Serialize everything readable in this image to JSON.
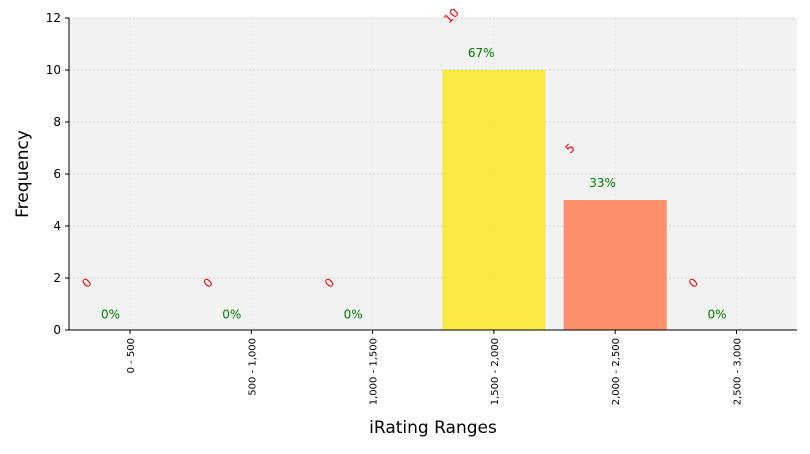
{
  "chart_data": {
    "type": "bar",
    "xlabel": "iRating Ranges",
    "ylabel": "Frequency",
    "categories": [
      "0 - 500",
      "500 - 1,000",
      "1,000 - 1,500",
      "1,500 - 2,000",
      "2,000 - 2,500",
      "2,500 - 3,000"
    ],
    "values": [
      0,
      0,
      0,
      10,
      5,
      0
    ],
    "count_labels": [
      "0",
      "0",
      "0",
      "10",
      "5",
      "0"
    ],
    "percent_labels": [
      "0%",
      "0%",
      "0%",
      "67%",
      "33%",
      "0%"
    ],
    "bar_colors": [
      "#440154",
      "#3b528b",
      "#21918c",
      "#fde725",
      "#ff7f50",
      "#d62728"
    ],
    "ylim": [
      0,
      12
    ],
    "yticks": [
      0,
      2,
      4,
      6,
      8,
      10,
      12
    ],
    "grid": true,
    "plot_background": "#f2f2f2",
    "count_label_color": "#ff0000",
    "percent_label_color": "#008000"
  }
}
